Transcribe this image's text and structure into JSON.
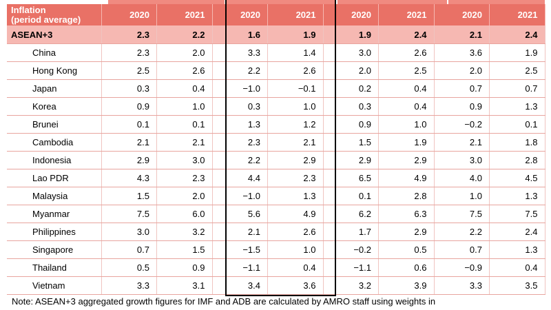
{
  "header": {
    "label_line1": "Inflation",
    "label_line2": "(period average)",
    "years": [
      "2020",
      "2021",
      "2020",
      "2021",
      "2020",
      "2021",
      "2020",
      "2021"
    ]
  },
  "rows": [
    {
      "country": "ASEAN+3",
      "values": [
        "2.3",
        "2.2",
        "1.6",
        "1.9",
        "1.9",
        "2.4",
        "2.1",
        "2.4"
      ]
    },
    {
      "country": "China",
      "values": [
        "2.3",
        "2.0",
        "3.3",
        "1.4",
        "3.0",
        "2.6",
        "3.6",
        "1.9"
      ]
    },
    {
      "country": "Hong Kong",
      "values": [
        "2.5",
        "2.6",
        "2.2",
        "2.6",
        "2.0",
        "2.5",
        "2.0",
        "2.5"
      ]
    },
    {
      "country": "Japan",
      "values": [
        "0.3",
        "0.4",
        "−1.0",
        "−0.1",
        "0.2",
        "0.4",
        "0.7",
        "0.7"
      ]
    },
    {
      "country": "Korea",
      "values": [
        "0.9",
        "1.0",
        "0.3",
        "1.0",
        "0.3",
        "0.4",
        "0.9",
        "1.3"
      ]
    },
    {
      "country": "Brunei",
      "values": [
        "0.1",
        "0.1",
        "1.3",
        "1.2",
        "0.9",
        "1.0",
        "−0.2",
        "0.1"
      ]
    },
    {
      "country": "Cambodia",
      "values": [
        "2.1",
        "2.1",
        "2.3",
        "2.1",
        "1.5",
        "1.9",
        "2.1",
        "1.8"
      ]
    },
    {
      "country": "Indonesia",
      "values": [
        "2.9",
        "3.0",
        "2.2",
        "2.9",
        "2.9",
        "2.9",
        "3.0",
        "2.8"
      ]
    },
    {
      "country": "Lao PDR",
      "values": [
        "4.3",
        "2.3",
        "4.4",
        "2.3",
        "6.5",
        "4.9",
        "4.0",
        "4.5"
      ]
    },
    {
      "country": "Malaysia",
      "values": [
        "1.5",
        "2.0",
        "−1.0",
        "1.3",
        "0.1",
        "2.8",
        "1.0",
        "1.3"
      ]
    },
    {
      "country": "Myanmar",
      "values": [
        "7.5",
        "6.0",
        "5.6",
        "4.9",
        "6.2",
        "6.3",
        "7.5",
        "7.5"
      ]
    },
    {
      "country": "Philippines",
      "values": [
        "3.0",
        "3.2",
        "2.1",
        "2.6",
        "1.7",
        "2.9",
        "2.2",
        "2.4"
      ]
    },
    {
      "country": "Singapore",
      "values": [
        "0.7",
        "1.5",
        "−1.5",
        "1.0",
        "−0.2",
        "0.5",
        "0.7",
        "1.3"
      ]
    },
    {
      "country": "Thailand",
      "values": [
        "0.5",
        "0.9",
        "−1.1",
        "0.4",
        "−1.1",
        "0.6",
        "−0.9",
        "0.4"
      ]
    },
    {
      "country": "Vietnam",
      "values": [
        "3.3",
        "3.1",
        "3.4",
        "3.6",
        "3.2",
        "3.9",
        "3.3",
        "3.5"
      ]
    }
  ],
  "note": "Note: ASEAN+3 aggregated growth figures for IMF and ADB are calculated by AMRO staff using weights in",
  "colors": {
    "header_bg": "#e97166",
    "aggregate_bg": "#f6b8b2",
    "grid_line": "#e8a49e",
    "highlight_frame": "#000000"
  }
}
